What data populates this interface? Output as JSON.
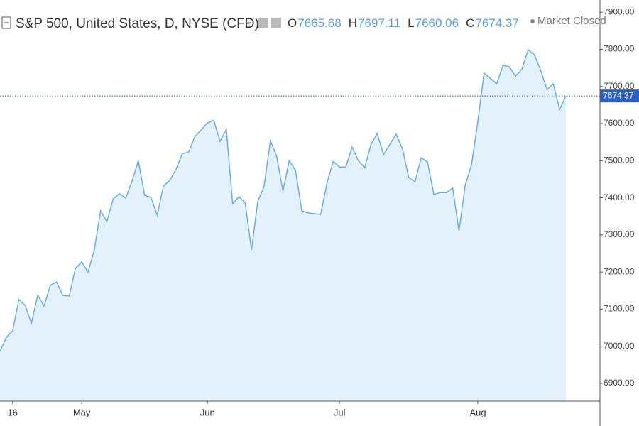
{
  "chart_data": {
    "type": "area",
    "title": "S&P 500, United States, D, NYSE (CFD)",
    "ohlc": [
      {
        "label": "O",
        "value": 7665.68
      },
      {
        "label": "H",
        "value": 7697.11
      },
      {
        "label": "L",
        "value": 7660.06
      },
      {
        "label": "C",
        "value": 7674.37
      }
    ],
    "status": "Market Closed",
    "color": "#6aaee6",
    "fill": "#e3f1fb",
    "categories": [
      null,
      null,
      "16",
      null,
      null,
      null,
      null,
      null,
      null,
      null,
      null,
      null,
      null,
      "May",
      null,
      null,
      null,
      null,
      null,
      null,
      null,
      null,
      null,
      null,
      null,
      null,
      null,
      null,
      null,
      null,
      null,
      null,
      null,
      "Jun",
      null,
      null,
      null,
      null,
      null,
      null,
      null,
      null,
      null,
      null,
      null,
      null,
      null,
      null,
      null,
      null,
      null,
      null,
      null,
      null,
      "Jul",
      null,
      null,
      null,
      null,
      null,
      null,
      null,
      null,
      null,
      null,
      null,
      null,
      null,
      null,
      null,
      null,
      null,
      null,
      null,
      null,
      null,
      "Aug",
      null,
      null,
      null,
      null,
      null,
      null,
      null,
      null,
      null,
      null,
      null,
      null,
      null,
      null
    ],
    "values": [
      6986,
      7024,
      7041,
      7126,
      7110,
      7063,
      7137,
      7108,
      7164,
      7173,
      7137,
      7135,
      7210,
      7227,
      7200,
      7259,
      7365,
      7336,
      7397,
      7411,
      7399,
      7445,
      7500,
      7407,
      7401,
      7353,
      7432,
      7447,
      7477,
      7519,
      7523,
      7565,
      7583,
      7602,
      7609,
      7552,
      7584,
      7384,
      7403,
      7386,
      7259,
      7391,
      7430,
      7554,
      7512,
      7418,
      7500,
      7474,
      7365,
      7359,
      7357,
      7355,
      7439,
      7498,
      7483,
      7483,
      7537,
      7500,
      7481,
      7544,
      7573,
      7516,
      7544,
      7571,
      7533,
      7455,
      7443,
      7508,
      7496,
      7409,
      7414,
      7414,
      7426,
      7311,
      7435,
      7489,
      7607,
      7736,
      7722,
      7707,
      7757,
      7753,
      7728,
      7747,
      7799,
      7785,
      7743,
      7692,
      7707,
      7638,
      7674.37
    ],
    "ylim": [
      6852,
      7933
    ],
    "yticks": [
      {
        "value": 6900,
        "label": "6900.00"
      },
      {
        "value": 7000,
        "label": "7000.00"
      },
      {
        "value": 7100,
        "label": "7100.00"
      },
      {
        "value": 7200,
        "label": "7200.00"
      },
      {
        "value": 7300,
        "label": "7300.00"
      },
      {
        "value": 7400,
        "label": "7400.00"
      },
      {
        "value": 7500,
        "label": "7500.00"
      },
      {
        "value": 7600,
        "label": "7600.00"
      },
      {
        "value": 7700,
        "label": "7700.00"
      },
      {
        "value": 7800,
        "label": "7800.00"
      },
      {
        "value": 7900,
        "label": "7900.00"
      }
    ]
  }
}
